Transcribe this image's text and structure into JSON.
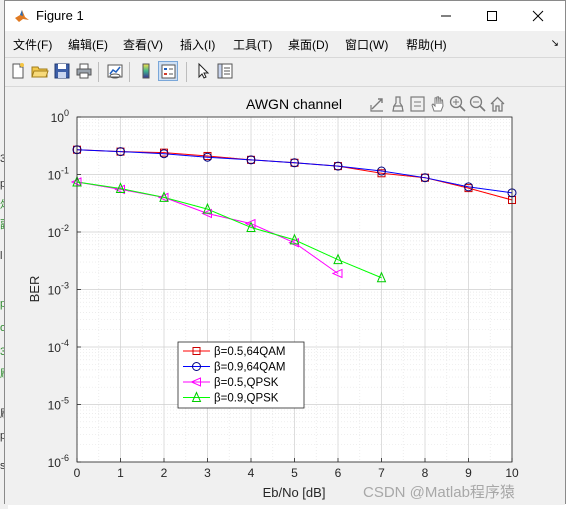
{
  "window": {
    "title": "Figure 1",
    "minimize_symbol": "–",
    "maximize_symbol": "☐",
    "close_symbol": "✕"
  },
  "background_chars": [
    "3",
    "p",
    "俎",
    "副",
    "l",
    "p",
    "o",
    "3",
    "刷",
    "刷",
    "p",
    "s"
  ],
  "menu": {
    "items": [
      "文件(F)",
      "编辑(E)",
      "查看(V)",
      "插入(I)",
      "工具(T)",
      "桌面(D)",
      "窗口(W)",
      "帮助(H)"
    ],
    "overflow": "↘"
  },
  "toolbar": {
    "icons": [
      "new-figure-icon",
      "open-file-icon",
      "save-icon",
      "print-icon",
      "link-plot-icon",
      "colorbar-icon",
      "legend-icon",
      "pointer-icon",
      "property-inspector-icon"
    ]
  },
  "axes_toolbar": {
    "icons": [
      "export-icon",
      "brush-icon",
      "datatip-icon",
      "pan-icon",
      "zoom-in-icon",
      "zoom-out-icon",
      "home-icon"
    ]
  },
  "colors": {
    "series": [
      "#ff0000",
      "#0000ff",
      "#ff00ff",
      "#00ff00"
    ],
    "marker_edges": [
      "#cc0000",
      "#000080",
      "#ff00ff",
      "#00cc00"
    ],
    "grid": "#dcdcdc",
    "axis": "#262626"
  },
  "watermark": "CSDN @Matlab程序猿",
  "chart_data": {
    "type": "line",
    "title": "AWGN channel",
    "xlabel": "Eb/No [dB]",
    "ylabel": "BER",
    "xlim": [
      0,
      10
    ],
    "ylim": [
      1e-06,
      1
    ],
    "yscale": "log",
    "grid": true,
    "minor_grid": true,
    "legend_position": "bottom-left",
    "xticks": [
      0,
      1,
      2,
      3,
      4,
      5,
      6,
      7,
      8,
      9,
      10
    ],
    "yticks": [
      {
        "base": "10",
        "exp": "0"
      },
      {
        "base": "10",
        "exp": "-1"
      },
      {
        "base": "10",
        "exp": "-2"
      },
      {
        "base": "10",
        "exp": "-3"
      },
      {
        "base": "10",
        "exp": "-4"
      },
      {
        "base": "10",
        "exp": "-5"
      },
      {
        "base": "10",
        "exp": "-6"
      }
    ],
    "series": [
      {
        "name": "β=0.5,64QAM",
        "marker": "square",
        "x": [
          0,
          1,
          2,
          3,
          4,
          5,
          6,
          7,
          8,
          9,
          10
        ],
        "y": [
          0.27,
          0.25,
          0.24,
          0.21,
          0.18,
          0.16,
          0.14,
          0.105,
          0.088,
          0.058,
          0.036
        ]
      },
      {
        "name": "β=0.9,64QAM",
        "marker": "circle",
        "x": [
          0,
          1,
          2,
          3,
          4,
          5,
          6,
          7,
          8,
          9,
          10
        ],
        "y": [
          0.27,
          0.25,
          0.23,
          0.2,
          0.18,
          0.16,
          0.14,
          0.115,
          0.088,
          0.061,
          0.048
        ]
      },
      {
        "name": "β=0.5,QPSK",
        "marker": "triangle-left",
        "x": [
          0,
          1,
          2,
          3,
          4,
          5,
          6
        ],
        "y": [
          0.074,
          0.055,
          0.04,
          0.021,
          0.014,
          0.0065,
          0.0019
        ]
      },
      {
        "name": "β=0.9,QPSK",
        "marker": "triangle-up",
        "x": [
          0,
          1,
          2,
          3,
          4,
          5,
          6,
          7
        ],
        "y": [
          0.074,
          0.057,
          0.04,
          0.025,
          0.012,
          0.0073,
          0.0033,
          0.0016
        ]
      }
    ]
  }
}
